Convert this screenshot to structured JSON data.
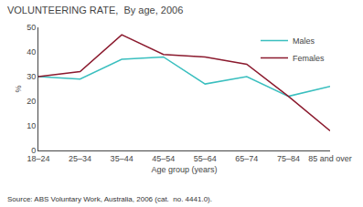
{
  "chart_data": {
    "type": "line",
    "title": "VOLUNTEERING RATE,  By age, 2006",
    "xlabel": "Age group (years)",
    "ylabel": "%",
    "source": "Source: ABS Voluntary Work, Australia, 2006 (cat.  no. 4441.0).",
    "categories": [
      "18–24",
      "25–34",
      "35–44",
      "45–54",
      "55–64",
      "65–74",
      "75–84",
      "85 and over"
    ],
    "series": [
      {
        "name": "Males",
        "color": "#3abfbf",
        "values": [
          30,
          29,
          37,
          38,
          27,
          30,
          22,
          26
        ]
      },
      {
        "name": "Females",
        "color": "#8b1a2e",
        "values": [
          30,
          32,
          47,
          39,
          38,
          35,
          22,
          8
        ]
      }
    ],
    "ylim": [
      0,
      50
    ],
    "yticks": [
      0,
      10,
      20,
      30,
      40,
      50
    ],
    "grid": false,
    "legend": "upper right"
  }
}
